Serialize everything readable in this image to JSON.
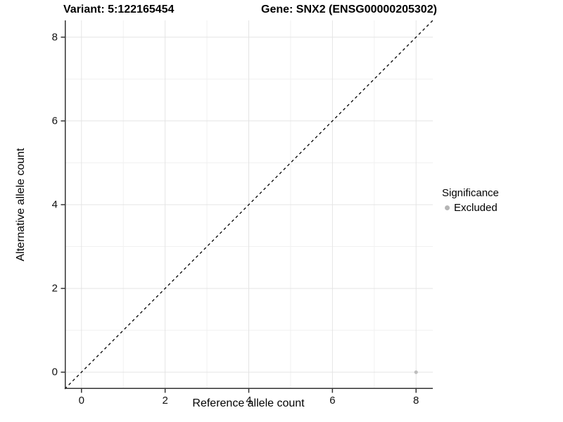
{
  "header": {
    "variant_title": "Variant: 5:122165454",
    "gene_title": "Gene: SNX2 (ENSG00000205302)"
  },
  "axes": {
    "x_label": "Reference allele count",
    "y_label": "Alternative allele count"
  },
  "legend": {
    "title": "Significance",
    "entries": [
      {
        "label": "Excluded",
        "color": "#b5b5b5"
      }
    ]
  },
  "chart_data": {
    "type": "scatter",
    "title": "Variant: 5:122165454   Gene: SNX2 (ENSG00000205302)",
    "xlabel": "Reference allele count",
    "ylabel": "Alternative allele count",
    "xlim": [
      -0.4,
      8.4
    ],
    "ylim": [
      -0.4,
      8.4
    ],
    "x_ticks": [
      0,
      2,
      4,
      6,
      8
    ],
    "y_ticks": [
      0,
      2,
      4,
      6,
      8
    ],
    "x_minor_ticks": [
      1,
      3,
      5,
      7
    ],
    "y_minor_ticks": [
      1,
      3,
      5,
      7
    ],
    "grid": "major+minor",
    "legend_position": "right",
    "series": [
      {
        "name": "Excluded",
        "color": "#bebebe",
        "points": [
          {
            "x": 8,
            "y": 0
          }
        ]
      }
    ],
    "reference_line": {
      "type": "identity",
      "slope": 1,
      "intercept": 0,
      "linestyle": "dashed",
      "color": "#000000"
    }
  },
  "style": {
    "background": "#ffffff",
    "grid_major_color": "#e4e4e4",
    "grid_minor_color": "#f1f1f1",
    "axis_color": "#333333",
    "tick_label_color": "#111111",
    "point_color": "#bebebe",
    "reference_line_color": "#000000"
  }
}
